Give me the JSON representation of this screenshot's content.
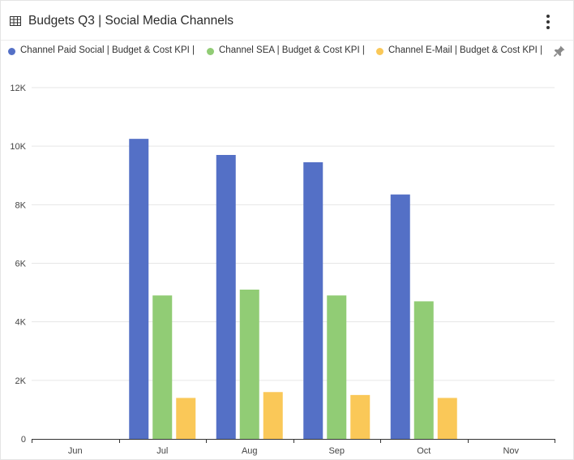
{
  "header": {
    "title": "Budgets Q3 | Social Media Channels",
    "table_icon": "table-icon",
    "menu_icon": "more-vertical-icon"
  },
  "legend": {
    "pin_icon": "pin-icon",
    "items": [
      {
        "label": "Channel Paid Social | Budget & Cost KPI |",
        "color": "#5470c6"
      },
      {
        "label": "Channel SEA | Budget & Cost KPI |",
        "color": "#91cc75"
      },
      {
        "label": "Channel E-Mail | Budget & Cost KPI |",
        "color": "#fac858"
      }
    ]
  },
  "chart_data": {
    "type": "bar",
    "categories": [
      "Jun",
      "Jul",
      "Aug",
      "Sep",
      "Oct",
      "Nov"
    ],
    "series": [
      {
        "name": "Channel Paid Social | Budget & Cost KPI |",
        "color": "#5470c6",
        "values": [
          null,
          10250,
          9700,
          9450,
          8350,
          null
        ]
      },
      {
        "name": "Channel SEA | Budget & Cost KPI |",
        "color": "#91cc75",
        "values": [
          null,
          4900,
          5100,
          4900,
          4700,
          null
        ]
      },
      {
        "name": "Channel E-Mail | Budget & Cost KPI |",
        "color": "#fac858",
        "values": [
          null,
          1400,
          1600,
          1500,
          1400,
          null
        ]
      }
    ],
    "ylim": [
      0,
      12000
    ],
    "yticks": [
      0,
      2000,
      4000,
      6000,
      8000,
      10000,
      12000
    ],
    "ytick_labels": [
      "0",
      "2K",
      "4K",
      "6K",
      "8K",
      "10K",
      "12K"
    ],
    "grid": true,
    "legend_position": "top"
  }
}
